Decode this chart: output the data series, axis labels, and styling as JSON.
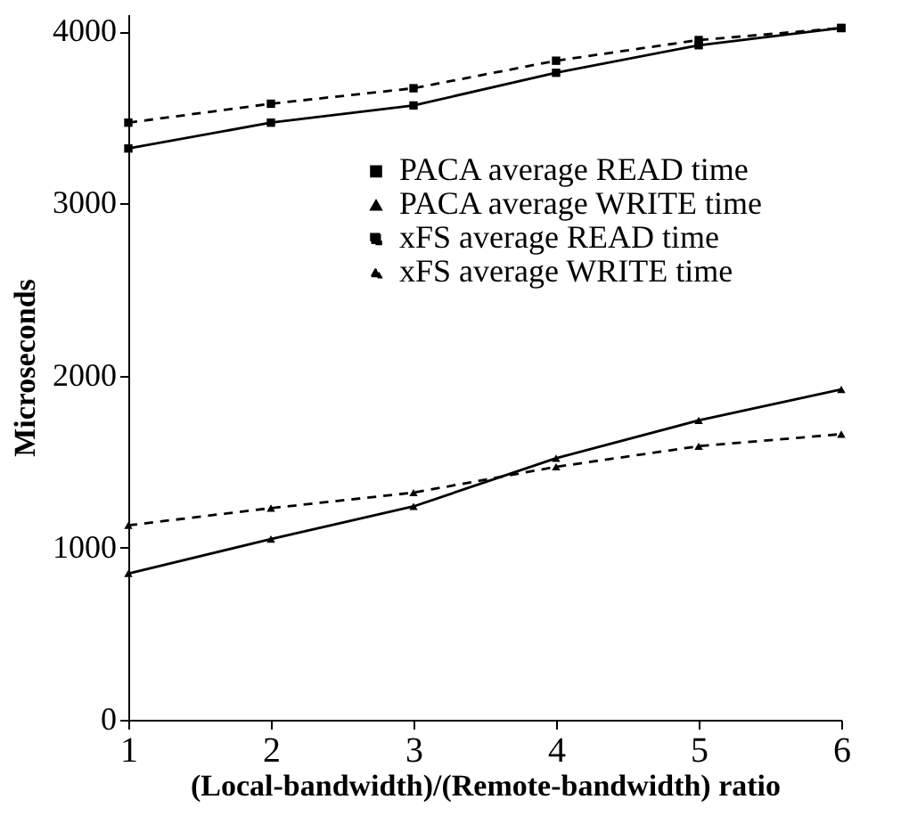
{
  "chart_data": {
    "type": "line",
    "xlabel": "(Local-bandwidth)/(Remote-bandwidth) ratio",
    "ylabel": "Microseconds",
    "x": [
      1,
      2,
      3,
      4,
      5,
      6
    ],
    "xlim": [
      1,
      6
    ],
    "xticks": [
      1,
      2,
      3,
      4,
      5,
      6
    ],
    "ylim": [
      0,
      4100
    ],
    "yticks": [
      0,
      1000,
      2000,
      3000,
      4000
    ],
    "grid": false,
    "legend": "right",
    "series": [
      {
        "name": "PACA average READ time",
        "color": "#000000",
        "marker": "square",
        "line_style": "solid",
        "values": [
          3320,
          3470,
          3570,
          3760,
          3920,
          4020
        ]
      },
      {
        "name": "PACA average WRITE time",
        "color": "#000000",
        "marker": "triangle",
        "line_style": "solid",
        "values": [
          850,
          1050,
          1240,
          1520,
          1740,
          1920
        ]
      },
      {
        "name": "xFS average READ time",
        "color": "#000000",
        "marker": "square",
        "line_style": "dashed",
        "values": [
          3470,
          3580,
          3670,
          3830,
          3950,
          4020
        ]
      },
      {
        "name": "xFS average WRITE time",
        "color": "#000000",
        "marker": "triangle",
        "line_style": "dashed",
        "values": [
          1130,
          1230,
          1320,
          1470,
          1590,
          1660
        ]
      }
    ]
  }
}
